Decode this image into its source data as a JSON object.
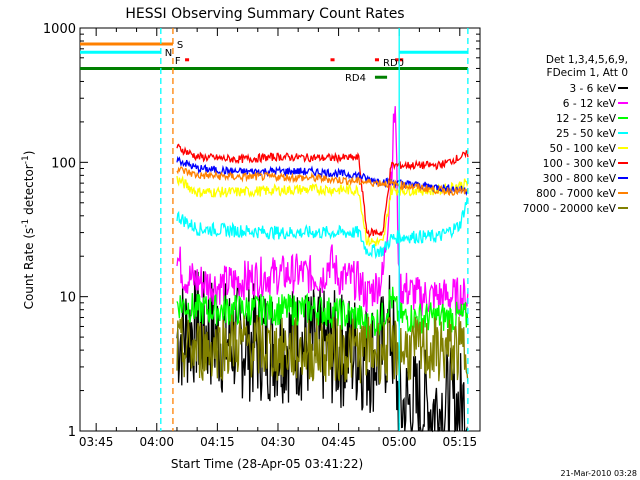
{
  "chart_data": {
    "type": "line",
    "title": "HESSI Observing Summary Count Rates",
    "xlabel": "Start Time (28-Apr-05 03:41:22)",
    "ylabel_parts": [
      "Count Rate (s",
      "-1",
      " detector",
      "-1",
      ")"
    ],
    "yscale": "log",
    "ylim": [
      1,
      1000
    ],
    "xlim": [
      "03:41",
      "05:20"
    ],
    "xticks": [
      {
        "t": "03:45",
        "label": "03:45"
      },
      {
        "t": "04:00",
        "label": "04:00"
      },
      {
        "t": "04:15",
        "label": "04:15"
      },
      {
        "t": "04:30",
        "label": "04:30"
      },
      {
        "t": "04:45",
        "label": "04:45"
      },
      {
        "t": "05:00",
        "label": "05:00"
      },
      {
        "t": "05:15",
        "label": "05:15"
      }
    ],
    "yticks": [
      {
        "v": 1,
        "label": "1"
      },
      {
        "v": 10,
        "label": "10"
      },
      {
        "v": 100,
        "label": "100"
      },
      {
        "v": 1000,
        "label": "1000"
      }
    ],
    "legend": {
      "placement": "right",
      "header": [
        "Det 1,3,4,5,6,9,",
        "FDecim 1, Att 0"
      ],
      "entries": [
        {
          "label": "3 - 6 keV",
          "color": "#000000"
        },
        {
          "label": "6 - 12 keV",
          "color": "#ff00ff"
        },
        {
          "label": "12 - 25 keV",
          "color": "#00ff00"
        },
        {
          "label": "25 - 50 keV",
          "color": "#00ffff"
        },
        {
          "label": "50 - 100 keV",
          "color": "#ffff00"
        },
        {
          "label": "100 - 300 keV",
          "color": "#ff0000"
        },
        {
          "label": "300 - 800 keV",
          "color": "#0000ff"
        },
        {
          "label": "800 - 7000 keV",
          "color": "#ff8000"
        },
        {
          "label": "7000 - 20000 keV",
          "color": "#808000"
        }
      ]
    },
    "gap": {
      "start": "04:52",
      "end": "04:56"
    },
    "series": [
      {
        "name": "3 - 6 keV",
        "color": "#000000",
        "noise": 0.45,
        "points": [
          [
            "04:05",
            5
          ],
          [
            "04:10",
            6
          ],
          [
            "04:15",
            5
          ],
          [
            "04:25",
            4.5
          ],
          [
            "04:35",
            4.5
          ],
          [
            "04:45",
            4
          ],
          [
            "04:50",
            4
          ],
          [
            "04:52",
            3.5
          ],
          [
            "04:56",
            4
          ],
          [
            "04:58",
            6
          ],
          [
            "05:00",
            1.5
          ],
          [
            "05:17",
            1.5
          ]
        ]
      },
      {
        "name": "6 - 12 keV",
        "color": "#ff00ff",
        "noise": 0.15,
        "points": [
          [
            "04:05",
            20
          ],
          [
            "04:07",
            14
          ],
          [
            "04:15",
            12
          ],
          [
            "04:25",
            14
          ],
          [
            "04:35",
            15
          ],
          [
            "04:41",
            14
          ],
          [
            "04:43",
            19
          ],
          [
            "04:45",
            14
          ],
          [
            "04:50",
            13
          ],
          [
            "04:52",
            10
          ],
          [
            "04:56",
            14
          ],
          [
            "04:58",
            80
          ],
          [
            "04:59",
            280
          ],
          [
            "05:00",
            12
          ],
          [
            "05:05",
            10
          ],
          [
            "05:17",
            10
          ]
        ]
      },
      {
        "name": "12 - 25 keV",
        "color": "#00ff00",
        "noise": 0.12,
        "points": [
          [
            "04:05",
            9
          ],
          [
            "04:10",
            8
          ],
          [
            "04:20",
            8
          ],
          [
            "04:30",
            8
          ],
          [
            "04:40",
            8
          ],
          [
            "04:50",
            7
          ],
          [
            "04:52",
            6
          ],
          [
            "04:56",
            7
          ],
          [
            "04:58",
            10
          ],
          [
            "05:00",
            7
          ],
          [
            "05:10",
            7
          ],
          [
            "05:17",
            7
          ]
        ]
      },
      {
        "name": "25 - 50 keV",
        "color": "#00ffff",
        "noise": 0.05,
        "points": [
          [
            "04:05",
            40
          ],
          [
            "04:10",
            32
          ],
          [
            "04:20",
            31
          ],
          [
            "04:30",
            30
          ],
          [
            "04:40",
            30
          ],
          [
            "04:50",
            30
          ],
          [
            "04:52",
            22
          ],
          [
            "04:56",
            22
          ],
          [
            "04:58",
            27
          ],
          [
            "05:00",
            28
          ],
          [
            "05:10",
            28
          ],
          [
            "05:15",
            34
          ],
          [
            "05:17",
            55
          ]
        ]
      },
      {
        "name": "50 - 100 keV",
        "color": "#ffff00",
        "noise": 0.04,
        "points": [
          [
            "04:05",
            75
          ],
          [
            "04:10",
            60
          ],
          [
            "04:20",
            60
          ],
          [
            "04:30",
            62
          ],
          [
            "04:40",
            63
          ],
          [
            "04:50",
            62
          ],
          [
            "04:52",
            26
          ],
          [
            "04:56",
            25
          ],
          [
            "04:58",
            62
          ],
          [
            "05:00",
            62
          ],
          [
            "05:10",
            62
          ],
          [
            "05:17",
            70
          ]
        ]
      },
      {
        "name": "100 - 300 keV",
        "color": "#ff0000",
        "noise": 0.03,
        "points": [
          [
            "04:05",
            130
          ],
          [
            "04:10",
            110
          ],
          [
            "04:20",
            105
          ],
          [
            "04:30",
            110
          ],
          [
            "04:40",
            108
          ],
          [
            "04:50",
            108
          ],
          [
            "04:52",
            30
          ],
          [
            "04:56",
            30
          ],
          [
            "04:58",
            95
          ],
          [
            "05:00",
            95
          ],
          [
            "05:10",
            95
          ],
          [
            "05:17",
            115
          ]
        ]
      },
      {
        "name": "300 - 800 keV",
        "color": "#0000ff",
        "noise": 0.03,
        "points": [
          [
            "04:05",
            105
          ],
          [
            "04:10",
            90
          ],
          [
            "04:20",
            85
          ],
          [
            "04:30",
            86
          ],
          [
            "04:40",
            85
          ],
          [
            "04:50",
            80
          ],
          [
            "04:52",
            75
          ],
          [
            "04:56",
            72
          ],
          [
            "05:00",
            70
          ],
          [
            "05:10",
            65
          ],
          [
            "05:17",
            62
          ]
        ]
      },
      {
        "name": "800 - 7000 keV",
        "color": "#ff8000",
        "noise": 0.03,
        "points": [
          [
            "04:05",
            90
          ],
          [
            "04:10",
            80
          ],
          [
            "04:20",
            78
          ],
          [
            "04:30",
            78
          ],
          [
            "04:40",
            76
          ],
          [
            "04:50",
            72
          ],
          [
            "04:56",
            70
          ],
          [
            "05:00",
            68
          ],
          [
            "05:10",
            62
          ],
          [
            "05:17",
            60
          ]
        ]
      },
      {
        "name": "7000 - 20000 keV",
        "color": "#808000",
        "noise": 0.25,
        "points": [
          [
            "04:05",
            4
          ],
          [
            "04:10",
            4
          ],
          [
            "04:20",
            4.5
          ],
          [
            "04:30",
            4
          ],
          [
            "04:40",
            4
          ],
          [
            "04:50",
            4
          ],
          [
            "04:56",
            4
          ],
          [
            "05:00",
            4
          ],
          [
            "05:10",
            4
          ],
          [
            "05:17",
            4
          ]
        ]
      }
    ],
    "flag_bars": [
      {
        "label": "S",
        "color": "#ff8000",
        "segments": [
          [
            "03:41",
            "04:04"
          ]
        ],
        "level": 760
      },
      {
        "label": "N",
        "color": "#00ffff",
        "segments": [
          [
            "03:41",
            "04:01"
          ],
          [
            "05:00",
            "05:17"
          ]
        ],
        "level": 660
      },
      {
        "label": "F",
        "color": "#ff0000",
        "segments": [
          [
            "04:07",
            "04:08"
          ],
          [
            "04:43",
            "04:44"
          ],
          [
            "04:54",
            "04:55"
          ],
          [
            "04:59",
            "05:01"
          ]
        ],
        "level": 580
      },
      {
        "label": "RD0",
        "color": "#ff0000",
        "segments": [],
        "level": 560
      },
      {
        "label": "RD4",
        "color": "#008000",
        "segments": [
          [
            "04:54",
            "04:57"
          ]
        ],
        "level": 430
      },
      {
        "label": "",
        "color": "#008000",
        "segments": [
          [
            "03:41",
            "05:17"
          ]
        ],
        "level": 500
      }
    ],
    "vertical_lines": [
      {
        "t": "04:01",
        "color": "#00ffff",
        "style": "dashed"
      },
      {
        "t": "04:04",
        "color": "#ff8000",
        "style": "dashed"
      },
      {
        "t": "05:00",
        "color": "#00ffff",
        "style": "solid"
      },
      {
        "t": "05:17",
        "color": "#00ffff",
        "style": "dashed"
      }
    ]
  },
  "footer": {
    "timestamp": "21-Mar-2010 03:28"
  }
}
